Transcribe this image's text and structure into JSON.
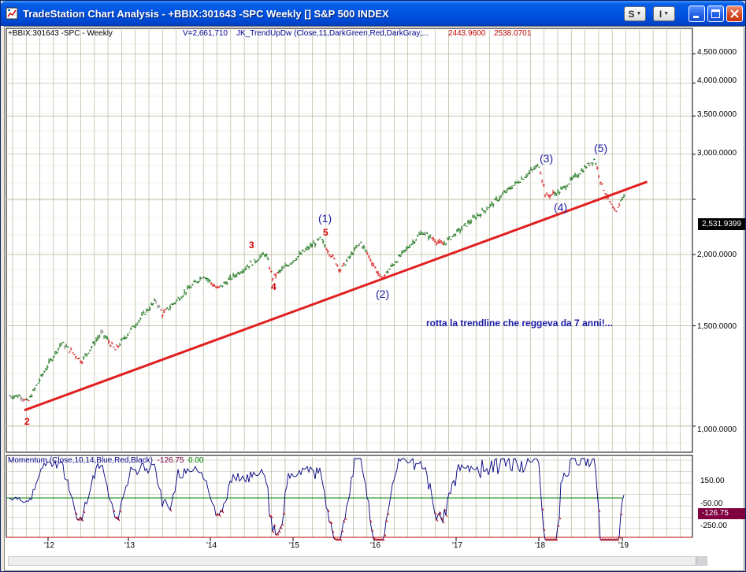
{
  "window": {
    "title": "TradeStation Chart Analysis - +BBIX:301643 -SPC Weekly [] S&P 500 INDEX",
    "toolbar_s": "S",
    "toolbar_i": "I"
  },
  "header": {
    "symbol": "+BBIX:301643 -SPC - Weekly",
    "volume": "V=2,661,710",
    "indicator": "JK_TrendUpDw (Close,11,DarkGreen,Red,DarkGray,...",
    "value1": "2443.9600",
    "value2": "2538.0701"
  },
  "price_axis": {
    "labels": [
      "4,500.0000",
      "4,000.0000",
      "3,500.0000",
      "3,000.0000",
      "2,000.0000",
      "1,500.0000",
      "1,000.0000"
    ],
    "last_price": "2,531.9399"
  },
  "momentum": {
    "label": "Momentum (Close,10,14,Blue,Red,Black)",
    "value": "-126.75",
    "zero": "0.00",
    "axis_labels": [
      "150.00",
      "-50.00",
      "-250.00"
    ],
    "last_value": "-126.75"
  },
  "x_axis": {
    "labels": [
      "'12",
      "'13",
      "'14",
      "'15",
      "'16",
      "'17",
      "'18",
      "'19"
    ]
  },
  "annotations": {
    "waves_blue": [
      "(1)",
      "(2)",
      "(3)",
      "(4)",
      "(5)"
    ],
    "waves_red": [
      "3",
      "4",
      "5",
      "2"
    ],
    "note": "rotta la trendline che reggeva da 7 anni!..."
  },
  "colors": {
    "up": "#006400",
    "down": "#d00000",
    "neutral": "#808080",
    "trendline": "#e02020",
    "grid": "#b4b49a",
    "momentum": "#000080"
  },
  "chart_data": {
    "type": "line",
    "title": "",
    "y_scale": "log",
    "ylim": [
      900,
      4800
    ],
    "x_years": [
      "'12",
      "'13",
      "'14",
      "'15",
      "'16",
      "'17",
      "'18",
      "'19"
    ],
    "approx_series": [
      {
        "date": "2011-09",
        "price": 1130
      },
      {
        "date": "2011-10",
        "price": 1100
      },
      {
        "date": "2012-03",
        "price": 1400
      },
      {
        "date": "2012-06",
        "price": 1300
      },
      {
        "date": "2012-09",
        "price": 1460
      },
      {
        "date": "2012-11",
        "price": 1360
      },
      {
        "date": "2013-05",
        "price": 1660
      },
      {
        "date": "2013-06",
        "price": 1570
      },
      {
        "date": "2013-12",
        "price": 1840
      },
      {
        "date": "2014-02",
        "price": 1740
      },
      {
        "date": "2014-09",
        "price": 2010
      },
      {
        "date": "2014-10",
        "price": 1820
      },
      {
        "date": "2015-05",
        "price": 2130
      },
      {
        "date": "2015-08",
        "price": 1880
      },
      {
        "date": "2015-11",
        "price": 2100
      },
      {
        "date": "2016-02",
        "price": 1810
      },
      {
        "date": "2016-08",
        "price": 2190
      },
      {
        "date": "2016-11",
        "price": 2080
      },
      {
        "date": "2017-06",
        "price": 2440
      },
      {
        "date": "2018-01",
        "price": 2870
      },
      {
        "date": "2018-02",
        "price": 2530
      },
      {
        "date": "2018-04",
        "price": 2580
      },
      {
        "date": "2018-09",
        "price": 2940
      },
      {
        "date": "2018-10",
        "price": 2650
      },
      {
        "date": "2018-12",
        "price": 2350
      },
      {
        "date": "2019-01",
        "price": 2530
      }
    ],
    "trendline": [
      {
        "date": "2011-10",
        "price": 1080
      },
      {
        "date": "2019-03",
        "price": 2650
      }
    ]
  }
}
